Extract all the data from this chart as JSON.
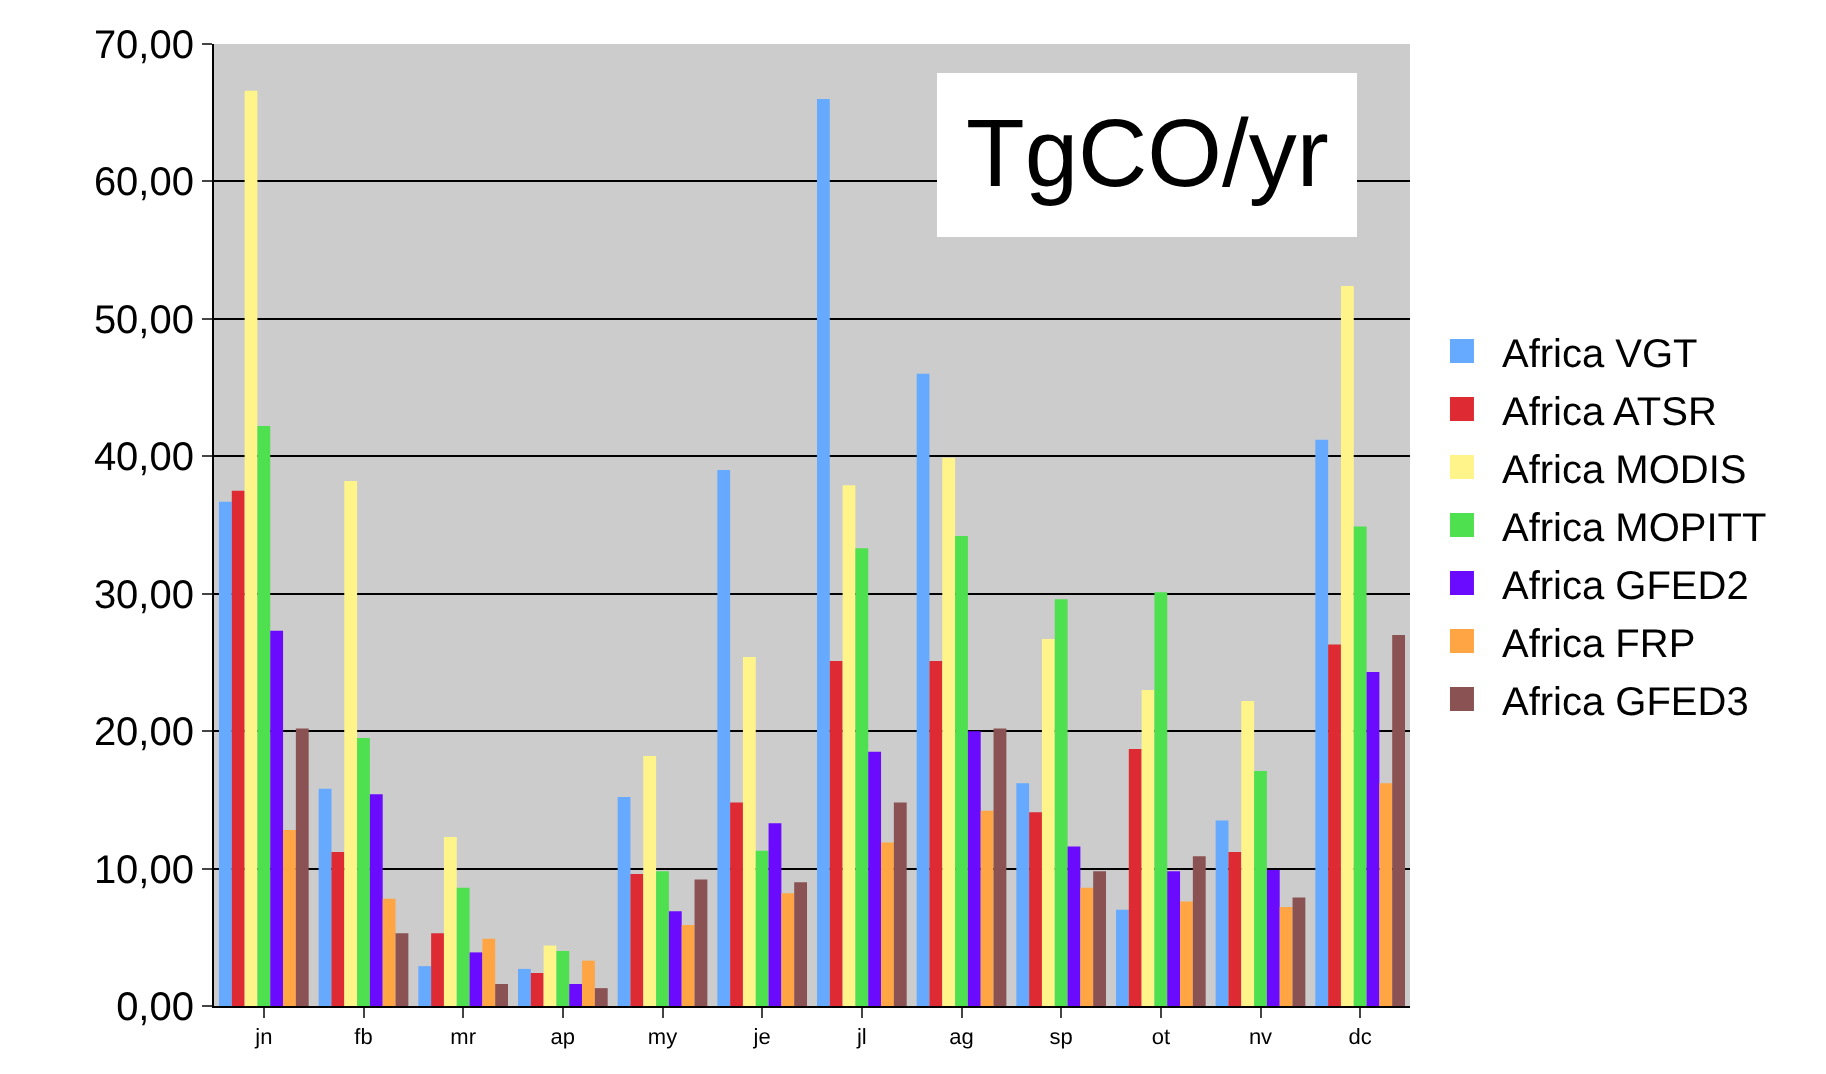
{
  "chart_data": {
    "type": "bar",
    "title": "TgCO/yr",
    "categories": [
      "jn",
      "fb",
      "mr",
      "ap",
      "my",
      "je",
      "jl",
      "ag",
      "sp",
      "ot",
      "nv",
      "dc"
    ],
    "series": [
      {
        "name": "Africa VGT",
        "color": "#66aaff",
        "values": [
          36.7,
          15.8,
          2.9,
          2.7,
          15.2,
          39.0,
          66.0,
          46.0,
          16.2,
          7.0,
          13.5,
          41.2
        ]
      },
      {
        "name": "Africa ATSR",
        "color": "#dd2a33",
        "values": [
          37.5,
          11.2,
          5.3,
          2.4,
          9.6,
          14.8,
          25.1,
          25.1,
          14.1,
          18.7,
          11.2,
          26.3
        ]
      },
      {
        "name": "Africa MODIS",
        "color": "#fff48a",
        "values": [
          66.6,
          38.2,
          12.3,
          4.4,
          18.2,
          25.4,
          37.9,
          39.9,
          26.7,
          23.0,
          22.2,
          52.4
        ]
      },
      {
        "name": "Africa MOPITT",
        "color": "#4ee04e",
        "values": [
          42.2,
          19.5,
          8.6,
          4.0,
          9.8,
          11.3,
          33.3,
          34.2,
          29.6,
          30.1,
          17.1,
          34.9
        ]
      },
      {
        "name": "Africa GFED2",
        "color": "#6a0aff",
        "values": [
          27.3,
          15.4,
          3.9,
          1.6,
          6.9,
          13.3,
          18.5,
          20.0,
          11.6,
          9.8,
          9.9,
          24.3
        ]
      },
      {
        "name": "Africa FRP",
        "color": "#ffa544",
        "values": [
          12.8,
          7.8,
          4.9,
          3.3,
          5.9,
          8.2,
          11.9,
          14.2,
          8.6,
          7.6,
          7.2,
          16.2
        ]
      },
      {
        "name": "Africa GFED3",
        "color": "#8a5252",
        "values": [
          20.2,
          5.3,
          1.6,
          1.3,
          9.2,
          9.0,
          14.8,
          20.2,
          9.8,
          10.9,
          7.9,
          27.0
        ]
      }
    ],
    "ylim": [
      0,
      70
    ],
    "yticks": [
      {
        "value": 0,
        "label": "0,00"
      },
      {
        "value": 10,
        "label": "10,00"
      },
      {
        "value": 20,
        "label": "20,00"
      },
      {
        "value": 30,
        "label": "30,00"
      },
      {
        "value": 40,
        "label": "40,00"
      },
      {
        "value": 50,
        "label": "50,00"
      },
      {
        "value": 60,
        "label": "60,00"
      },
      {
        "value": 70,
        "label": "70,00"
      }
    ],
    "grid": "y",
    "legend": "right"
  }
}
